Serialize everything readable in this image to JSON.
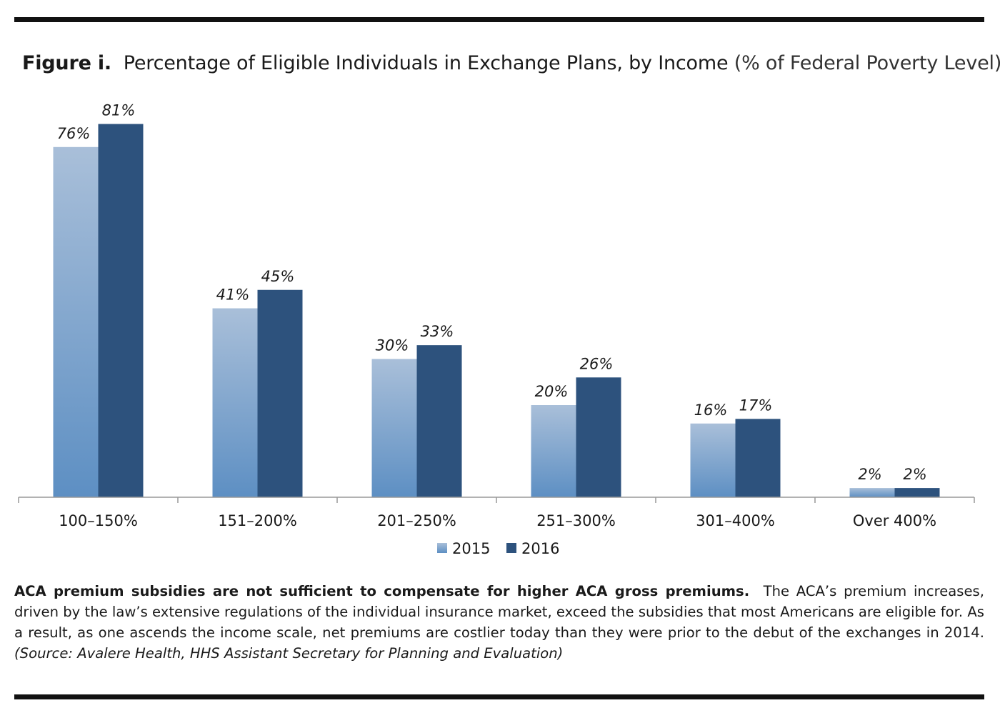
{
  "figure": {
    "label": "Figure i.",
    "title": "Percentage of Eligible Individuals in Exchange Plans, by Income",
    "subtitle": "(% of Federal Poverty Level)"
  },
  "caption": {
    "bold": "ACA premium subsidies are not sufficient to compensate for higher ACA gross premiums.",
    "body": "The ACA’s premium increases, driven by the law’s extensive regulations of the individual insurance market, exceed the subsidies that most Americans are eligible for. As a result, as one ascends the income scale, net premiums are costlier today than they were prior to the debut of the exchanges in 2014.",
    "source": "(Source: Avalere Health, HHS Assistant Secretary for Planning and Evaluation)"
  },
  "colors": {
    "series_2015_top": "#a9bfd9",
    "series_2015_bottom": "#5d8fc3",
    "series_2016": "#2d527d",
    "axis": "#999999",
    "text": "#1a1a1a"
  },
  "chart_data": {
    "type": "bar",
    "categories": [
      "100–150%",
      "151–200%",
      "201–250%",
      "251–300%",
      "301–400%",
      "Over 400%"
    ],
    "series": [
      {
        "name": "2015",
        "values": [
          76,
          41,
          30,
          20,
          16,
          2
        ],
        "labels": [
          "76%",
          "41%",
          "30%",
          "20%",
          "16%",
          "2%"
        ]
      },
      {
        "name": "2016",
        "values": [
          81,
          45,
          33,
          26,
          17,
          2
        ],
        "labels": [
          "81%",
          "45%",
          "33%",
          "26%",
          "17%",
          "2%"
        ]
      }
    ],
    "ylim": [
      0,
      85
    ],
    "grid": false,
    "legend_position": "bottom-center",
    "xlabel": "",
    "ylabel": ""
  }
}
